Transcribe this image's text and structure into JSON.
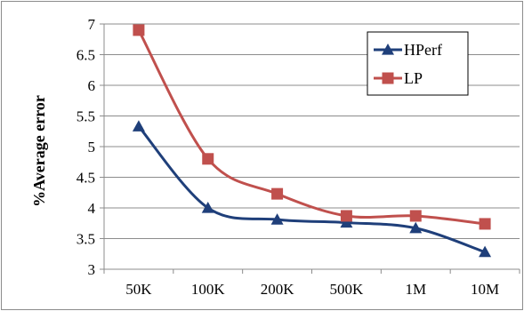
{
  "chart_data": {
    "type": "line",
    "title": "",
    "xlabel": "",
    "ylabel": "%Average error",
    "categories": [
      "50K",
      "100K",
      "200K",
      "500K",
      "1M",
      "10M"
    ],
    "ylim": [
      3,
      7
    ],
    "yticks": [
      "3",
      "3.5",
      "4",
      "4.5",
      "5",
      "5.5",
      "6",
      "6.5",
      "7"
    ],
    "grid": true,
    "legend_position": "top-right",
    "series": [
      {
        "name": "HPerf",
        "values": [
          5.33,
          4.0,
          3.81,
          3.76,
          3.67,
          3.28
        ],
        "color": "#1F3F7A",
        "marker": "triangle"
      },
      {
        "name": "LP",
        "values": [
          6.9,
          4.8,
          4.23,
          3.87,
          3.87,
          3.74
        ],
        "color": "#C0504D",
        "marker": "square"
      }
    ]
  }
}
